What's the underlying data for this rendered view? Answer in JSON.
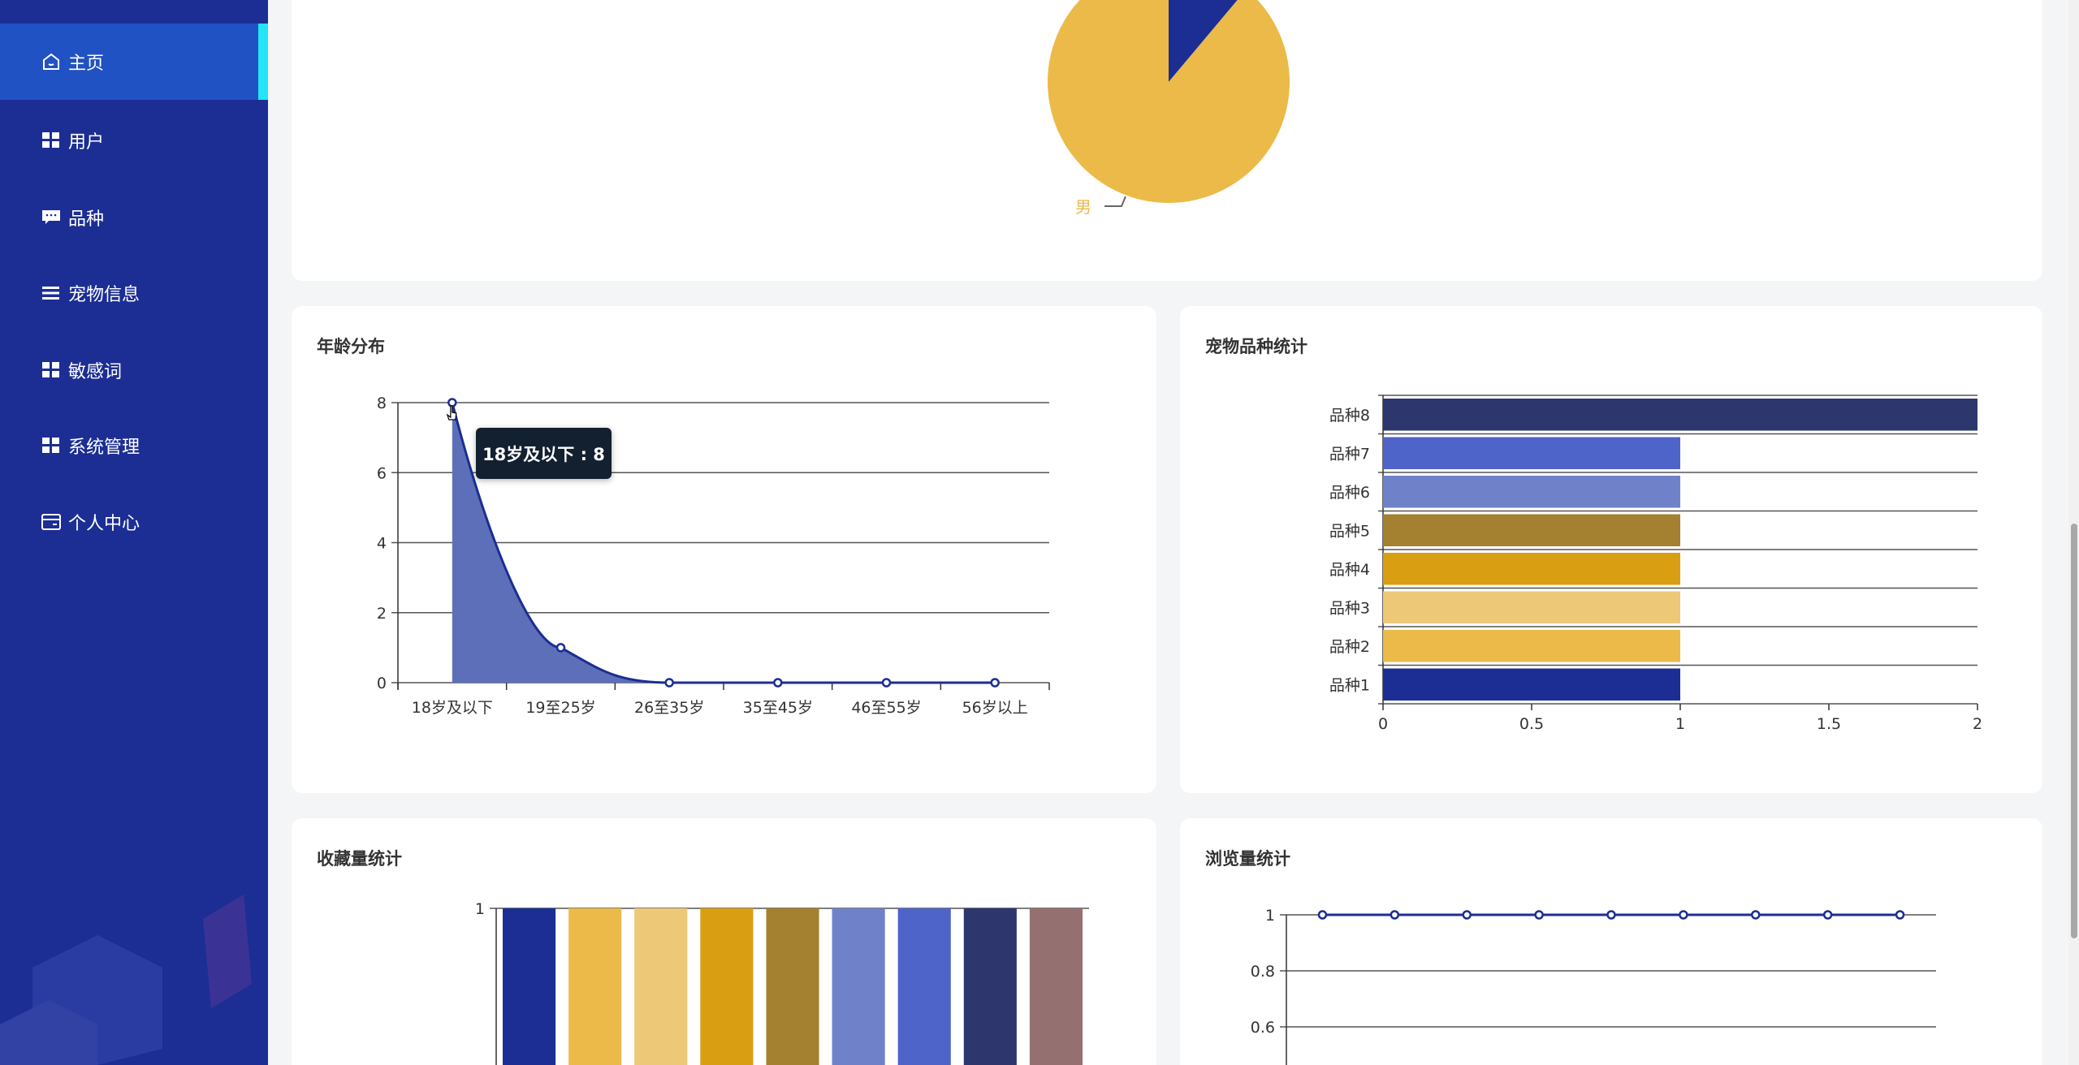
{
  "sidebar": {
    "items": [
      {
        "label": "主页",
        "icon": "home-icon",
        "active": true
      },
      {
        "label": "用户",
        "icon": "grid-icon"
      },
      {
        "label": "品种",
        "icon": "chat-icon"
      },
      {
        "label": "宠物信息",
        "icon": "list-icon"
      },
      {
        "label": "敏感词",
        "icon": "grid-icon"
      },
      {
        "label": "系统管理",
        "icon": "grid-icon"
      },
      {
        "label": "个人中心",
        "icon": "card-icon"
      }
    ],
    "colors": {
      "bg": "#1c2e94",
      "active": "#2152c4",
      "indicator": "#22e5f5"
    }
  },
  "chart_data": [
    {
      "type": "pie",
      "slices": [
        {
          "name": "男",
          "value": 8,
          "color": "#ebba48"
        },
        {
          "value": 1,
          "color": "#1c2e94"
        }
      ]
    },
    {
      "type": "area",
      "title": "年龄分布",
      "categories": [
        "18岁及以下",
        "19至25岁",
        "26至35岁",
        "35至45岁",
        "46至55岁",
        "56岁以上"
      ],
      "values": [
        8,
        1,
        0,
        0,
        0,
        0
      ],
      "ylim": [
        0,
        8
      ],
      "yticks": [
        "0",
        "2",
        "4",
        "6",
        "8"
      ],
      "grid": true,
      "color": "#1c2e94",
      "fill": "#5e6fba",
      "tooltip": "18岁及以下 : 8"
    },
    {
      "type": "bar",
      "orientation": "horizontal",
      "title": "宠物品种统计",
      "categories": [
        "品种1",
        "品种2",
        "品种3",
        "品种4",
        "品种5",
        "品种6",
        "品种7",
        "品种8"
      ],
      "values": [
        1,
        1,
        1,
        1,
        1,
        1,
        1,
        2
      ],
      "colors": [
        "#1c2e94",
        "#ebba48",
        "#ecc877",
        "#d99e12",
        "#a38131",
        "#6f82c9",
        "#4f64c9",
        "#2d376e"
      ],
      "xlim": [
        0,
        2
      ],
      "xticks": [
        "0",
        "0.5",
        "1",
        "1.5",
        "2"
      ],
      "grid": true
    },
    {
      "type": "bar",
      "title": "收藏量统计",
      "values": [
        1,
        1,
        1,
        1,
        1,
        1,
        1,
        1,
        1
      ],
      "colors": [
        "#1c2e94",
        "#ebba48",
        "#ecc877",
        "#d99e12",
        "#a38131",
        "#6f82c9",
        "#4f64c9",
        "#2d376e",
        "#957070"
      ],
      "yticks": [
        "1"
      ],
      "ylim": [
        0,
        1
      ]
    },
    {
      "type": "line",
      "title": "浏览量统计",
      "values": [
        1,
        1,
        1,
        1,
        1,
        1,
        1,
        1,
        1
      ],
      "yticks": [
        "0.6",
        "0.8",
        "1"
      ],
      "ylim": [
        0,
        1
      ],
      "grid": true,
      "color": "#1c2e94"
    }
  ]
}
